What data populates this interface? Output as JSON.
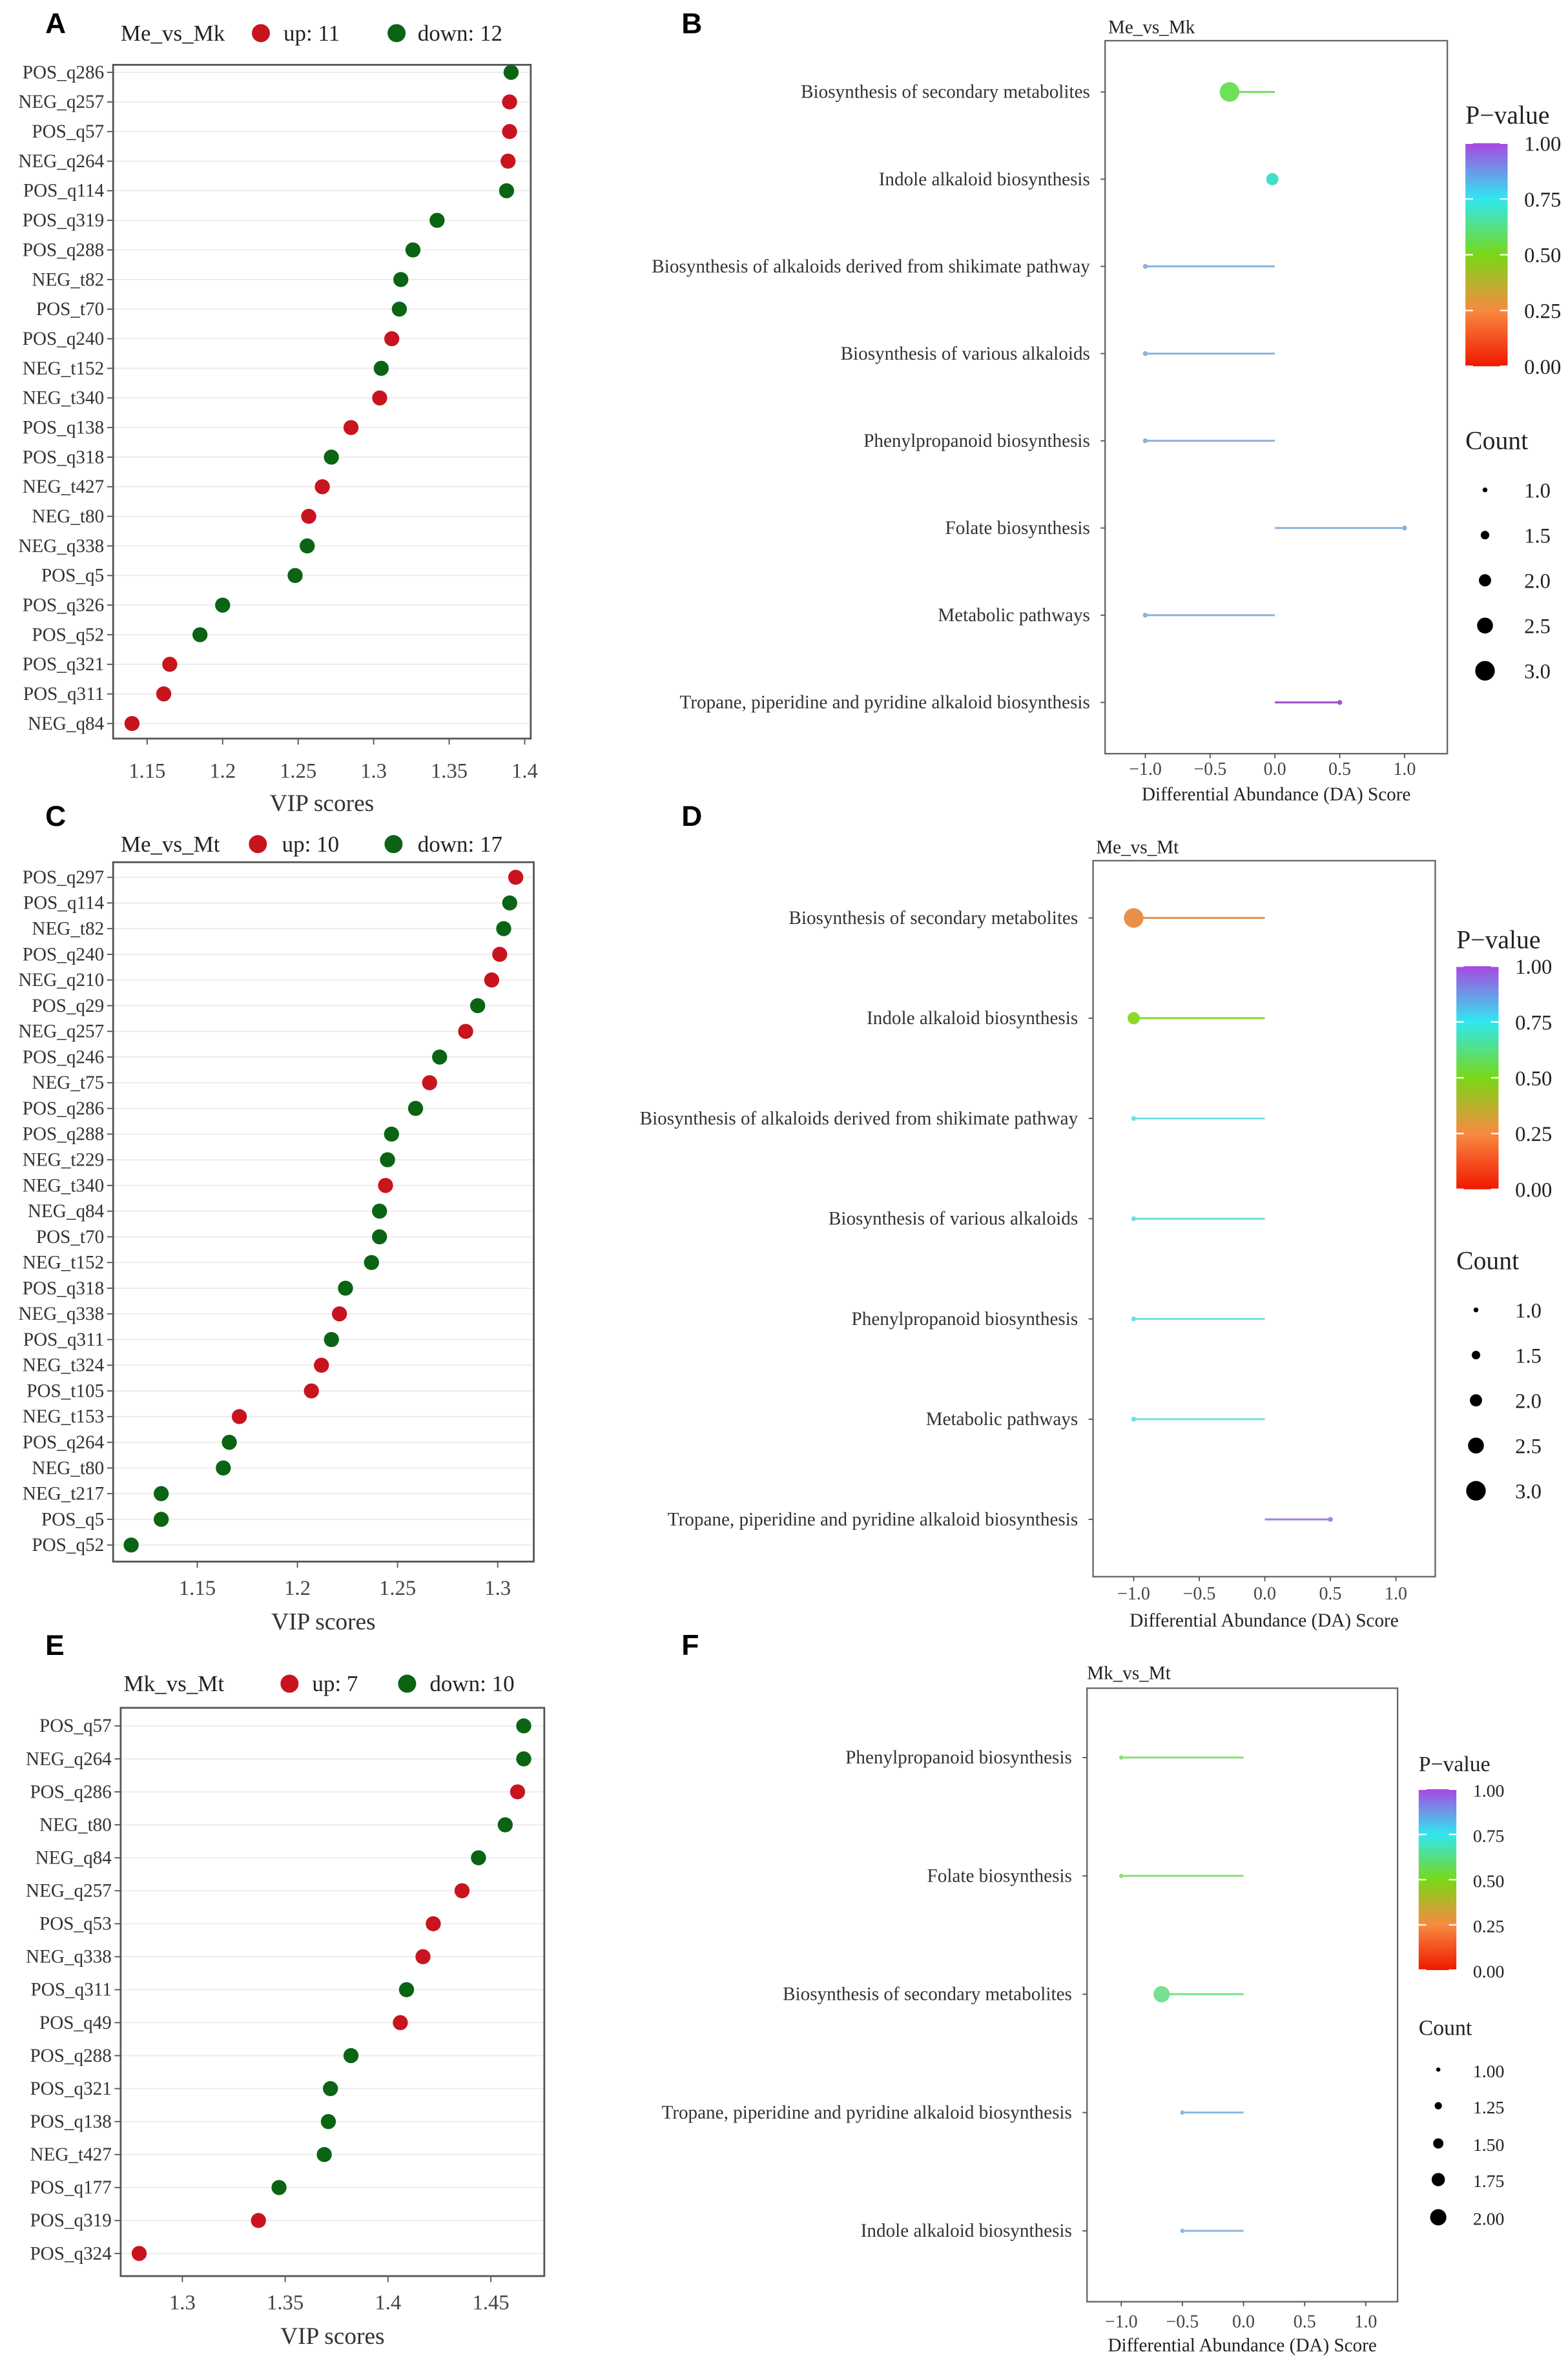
{
  "colors": {
    "up": "#c8141e",
    "down": "#0a6414",
    "grid": "#ebebeb",
    "axis": "#555555"
  },
  "chart_data": [
    {
      "panel": "A",
      "type": "scatter",
      "title": "Me_vs_Mk",
      "legend": {
        "up_label": "up: 11",
        "down_label": "down: 12"
      },
      "xlabel": "VIP scores",
      "xlim": [
        1.1275,
        1.404
      ],
      "xticks": [
        1.15,
        1.2,
        1.25,
        1.3,
        1.35,
        1.4
      ],
      "xtick_labels": [
        "1.15",
        "1.2",
        "1.25",
        "1.3",
        "1.35",
        "1.4"
      ],
      "points": [
        {
          "label": "POS_q286",
          "vip": 1.391,
          "direction": "down"
        },
        {
          "label": "NEG_q257",
          "vip": 1.39,
          "direction": "up"
        },
        {
          "label": "POS_q57",
          "vip": 1.39,
          "direction": "up"
        },
        {
          "label": "NEG_q264",
          "vip": 1.389,
          "direction": "up"
        },
        {
          "label": "POS_q114",
          "vip": 1.388,
          "direction": "down"
        },
        {
          "label": "POS_q319",
          "vip": 1.342,
          "direction": "down"
        },
        {
          "label": "POS_q288",
          "vip": 1.326,
          "direction": "down"
        },
        {
          "label": "NEG_t82",
          "vip": 1.318,
          "direction": "down"
        },
        {
          "label": "POS_t70",
          "vip": 1.317,
          "direction": "down"
        },
        {
          "label": "POS_q240",
          "vip": 1.312,
          "direction": "up"
        },
        {
          "label": "NEG_t152",
          "vip": 1.305,
          "direction": "down"
        },
        {
          "label": "NEG_t340",
          "vip": 1.304,
          "direction": "up"
        },
        {
          "label": "POS_q138",
          "vip": 1.285,
          "direction": "up"
        },
        {
          "label": "POS_q318",
          "vip": 1.272,
          "direction": "down"
        },
        {
          "label": "NEG_t427",
          "vip": 1.266,
          "direction": "up"
        },
        {
          "label": "NEG_t80",
          "vip": 1.257,
          "direction": "up"
        },
        {
          "label": "NEG_q338",
          "vip": 1.256,
          "direction": "down"
        },
        {
          "label": "POS_q5",
          "vip": 1.248,
          "direction": "down"
        },
        {
          "label": "POS_q326",
          "vip": 1.2,
          "direction": "down"
        },
        {
          "label": "POS_q52",
          "vip": 1.185,
          "direction": "down"
        },
        {
          "label": "POS_q321",
          "vip": 1.165,
          "direction": "up"
        },
        {
          "label": "POS_q311",
          "vip": 1.161,
          "direction": "up"
        },
        {
          "label": "NEG_q84",
          "vip": 1.14,
          "direction": "up"
        }
      ]
    },
    {
      "panel": "B",
      "type": "lollipop",
      "title": "Me_vs_Mk",
      "xlabel": "Differential Abundance (DA) Score",
      "xlim": [
        -1.31,
        1.33
      ],
      "xticks": [
        -1.0,
        -0.5,
        0.0,
        0.5,
        1.0
      ],
      "xtick_labels": [
        "−1.0",
        "−0.5",
        "0.0",
        "0.5",
        "1.0"
      ],
      "pvalue_legend": {
        "title": "P−value",
        "labels": [
          "1.00",
          "0.75",
          "0.50",
          "0.25",
          "0.00"
        ]
      },
      "count_legend": {
        "title": "Count",
        "values": [
          1.0,
          1.5,
          2.0,
          2.5,
          3.0
        ],
        "labels": [
          "1.0",
          "1.5",
          "2.0",
          "2.5",
          "3.0"
        ]
      },
      "points": [
        {
          "pathway": "Biosynthesis of secondary metabolites",
          "da": -0.35,
          "count": 3,
          "pvalue": 0.55,
          "color": "#6ee05a"
        },
        {
          "pathway": "Indole alkaloid biosynthesis",
          "da": -0.02,
          "count": 2,
          "pvalue": 0.72,
          "color": "#40e0c8"
        },
        {
          "pathway": "Biosynthesis of alkaloids derived from shikimate pathway",
          "da": -1.0,
          "count": 1,
          "pvalue": 0.88,
          "color": "#8ab4dc"
        },
        {
          "pathway": "Biosynthesis of various alkaloids",
          "da": -1.0,
          "count": 1,
          "pvalue": 0.88,
          "color": "#8ab4dc"
        },
        {
          "pathway": "Phenylpropanoid biosynthesis",
          "da": -1.0,
          "count": 1,
          "pvalue": 0.88,
          "color": "#8ab4dc"
        },
        {
          "pathway": "Folate biosynthesis",
          "da": 1.0,
          "count": 1,
          "pvalue": 0.88,
          "color": "#8ab4dc"
        },
        {
          "pathway": "Metabolic pathways",
          "da": -1.0,
          "count": 1,
          "pvalue": 0.88,
          "color": "#8ab4dc"
        },
        {
          "pathway": "Tropane, piperidine and pyridine alkaloid biosynthesis",
          "da": 0.5,
          "count": 1,
          "pvalue": 1.0,
          "color": "#a050d8"
        }
      ]
    },
    {
      "panel": "C",
      "type": "scatter",
      "title": "Me_vs_Mt",
      "legend": {
        "up_label": "up: 10",
        "down_label": "down: 17"
      },
      "xlabel": "VIP scores",
      "xlim": [
        1.108,
        1.318
      ],
      "xticks": [
        1.15,
        1.2,
        1.25,
        1.3
      ],
      "xtick_labels": [
        "1.15",
        "1.2",
        "1.25",
        "1.3"
      ],
      "points": [
        {
          "label": "POS_q297",
          "vip": 1.309,
          "direction": "up"
        },
        {
          "label": "POS_q114",
          "vip": 1.306,
          "direction": "down"
        },
        {
          "label": "NEG_t82",
          "vip": 1.303,
          "direction": "down"
        },
        {
          "label": "POS_q240",
          "vip": 1.301,
          "direction": "up"
        },
        {
          "label": "NEG_q210",
          "vip": 1.297,
          "direction": "up"
        },
        {
          "label": "POS_q29",
          "vip": 1.29,
          "direction": "down"
        },
        {
          "label": "NEG_q257",
          "vip": 1.284,
          "direction": "up"
        },
        {
          "label": "POS_q246",
          "vip": 1.271,
          "direction": "down"
        },
        {
          "label": "NEG_t75",
          "vip": 1.266,
          "direction": "up"
        },
        {
          "label": "POS_q286",
          "vip": 1.259,
          "direction": "down"
        },
        {
          "label": "POS_q288",
          "vip": 1.247,
          "direction": "down"
        },
        {
          "label": "NEG_t229",
          "vip": 1.245,
          "direction": "down"
        },
        {
          "label": "NEG_t340",
          "vip": 1.244,
          "direction": "up"
        },
        {
          "label": "NEG_q84",
          "vip": 1.241,
          "direction": "down"
        },
        {
          "label": "POS_t70",
          "vip": 1.241,
          "direction": "down"
        },
        {
          "label": "NEG_t152",
          "vip": 1.237,
          "direction": "down"
        },
        {
          "label": "POS_q318",
          "vip": 1.224,
          "direction": "down"
        },
        {
          "label": "NEG_q338",
          "vip": 1.221,
          "direction": "up"
        },
        {
          "label": "POS_q311",
          "vip": 1.217,
          "direction": "down"
        },
        {
          "label": "NEG_t324",
          "vip": 1.212,
          "direction": "up"
        },
        {
          "label": "POS_t105",
          "vip": 1.207,
          "direction": "up"
        },
        {
          "label": "NEG_t153",
          "vip": 1.171,
          "direction": "up"
        },
        {
          "label": "POS_q264",
          "vip": 1.166,
          "direction": "down"
        },
        {
          "label": "NEG_t80",
          "vip": 1.163,
          "direction": "down"
        },
        {
          "label": "NEG_t217",
          "vip": 1.132,
          "direction": "down"
        },
        {
          "label": "POS_q5",
          "vip": 1.132,
          "direction": "down"
        },
        {
          "label": "POS_q52",
          "vip": 1.117,
          "direction": "down"
        }
      ]
    },
    {
      "panel": "D",
      "type": "lollipop",
      "title": "Me_vs_Mt",
      "xlabel": "Differential Abundance (DA) Score",
      "xlim": [
        -1.31,
        1.3
      ],
      "xticks": [
        -1.0,
        -0.5,
        0.0,
        0.5,
        1.0
      ],
      "xtick_labels": [
        "−1.0",
        "−0.5",
        "0.0",
        "0.5",
        "1.0"
      ],
      "pvalue_legend": {
        "title": "P−value",
        "labels": [
          "1.00",
          "0.75",
          "0.50",
          "0.25",
          "0.00"
        ]
      },
      "count_legend": {
        "title": "Count",
        "values": [
          1.0,
          1.5,
          2.0,
          2.5,
          3.0
        ],
        "labels": [
          "1.0",
          "1.5",
          "2.0",
          "2.5",
          "3.0"
        ]
      },
      "points": [
        {
          "pathway": "Biosynthesis of secondary metabolites",
          "da": -1.0,
          "count": 3,
          "pvalue": 0.3,
          "color": "#e8904a"
        },
        {
          "pathway": "Indole alkaloid biosynthesis",
          "da": -1.0,
          "count": 2,
          "pvalue": 0.48,
          "color": "#8cd828"
        },
        {
          "pathway": "Biosynthesis of alkaloids derived from shikimate pathway",
          "da": -1.0,
          "count": 1,
          "pvalue": 0.76,
          "color": "#70e0e0"
        },
        {
          "pathway": "Biosynthesis of various alkaloids",
          "da": -1.0,
          "count": 1,
          "pvalue": 0.76,
          "color": "#70e0e0"
        },
        {
          "pathway": "Phenylpropanoid biosynthesis",
          "da": -1.0,
          "count": 1,
          "pvalue": 0.76,
          "color": "#70e0e0"
        },
        {
          "pathway": "Metabolic pathways",
          "da": -1.0,
          "count": 1,
          "pvalue": 0.76,
          "color": "#70e0e0"
        },
        {
          "pathway": "Tropane, piperidine and pyridine alkaloid biosynthesis",
          "da": 0.5,
          "count": 1,
          "pvalue": 1.0,
          "color": "#a880e0"
        }
      ]
    },
    {
      "panel": "E",
      "type": "scatter",
      "title": "Mk_vs_Mt",
      "legend": {
        "up_label": "up: 7",
        "down_label": "down: 10"
      },
      "xlabel": "VIP scores",
      "xlim": [
        1.27,
        1.476
      ],
      "xticks": [
        1.3,
        1.35,
        1.4,
        1.45
      ],
      "xtick_labels": [
        "1.3",
        "1.35",
        "1.4",
        "1.45"
      ],
      "points": [
        {
          "label": "POS_q57",
          "vip": 1.466,
          "direction": "down"
        },
        {
          "label": "NEG_q264",
          "vip": 1.466,
          "direction": "down"
        },
        {
          "label": "POS_q286",
          "vip": 1.463,
          "direction": "up"
        },
        {
          "label": "NEG_t80",
          "vip": 1.457,
          "direction": "down"
        },
        {
          "label": "NEG_q84",
          "vip": 1.444,
          "direction": "down"
        },
        {
          "label": "NEG_q257",
          "vip": 1.436,
          "direction": "up"
        },
        {
          "label": "POS_q53",
          "vip": 1.422,
          "direction": "up"
        },
        {
          "label": "NEG_q338",
          "vip": 1.417,
          "direction": "up"
        },
        {
          "label": "POS_q311",
          "vip": 1.409,
          "direction": "down"
        },
        {
          "label": "POS_q49",
          "vip": 1.406,
          "direction": "up"
        },
        {
          "label": "POS_q288",
          "vip": 1.382,
          "direction": "down"
        },
        {
          "label": "POS_q321",
          "vip": 1.372,
          "direction": "down"
        },
        {
          "label": "POS_q138",
          "vip": 1.371,
          "direction": "down"
        },
        {
          "label": "NEG_t427",
          "vip": 1.369,
          "direction": "down"
        },
        {
          "label": "POS_q177",
          "vip": 1.347,
          "direction": "down"
        },
        {
          "label": "POS_q319",
          "vip": 1.337,
          "direction": "up"
        },
        {
          "label": "POS_q324",
          "vip": 1.279,
          "direction": "up"
        }
      ]
    },
    {
      "panel": "F",
      "type": "lollipop",
      "title": "Mk_vs_Mt",
      "xlabel": "Differential Abundance (DA) Score",
      "xlim": [
        -1.28,
        1.26
      ],
      "xticks": [
        -1.0,
        -0.5,
        0.0,
        0.5,
        1.0
      ],
      "xtick_labels": [
        "−1.0",
        "−0.5",
        "0.0",
        "0.5",
        "1.0"
      ],
      "pvalue_legend": {
        "title": "P−value",
        "labels": [
          "1.00",
          "0.75",
          "0.50",
          "0.25",
          "0.00"
        ]
      },
      "count_legend": {
        "title": "Count",
        "values": [
          1.0,
          1.25,
          1.5,
          1.75,
          2.0
        ],
        "labels": [
          "1.00",
          "1.25",
          "1.50",
          "1.75",
          "2.00"
        ]
      },
      "points": [
        {
          "pathway": "Phenylpropanoid biosynthesis",
          "da": -1.0,
          "count": 1,
          "pvalue": 0.56,
          "color": "#88dc78"
        },
        {
          "pathway": "Folate biosynthesis",
          "da": -1.0,
          "count": 1,
          "pvalue": 0.56,
          "color": "#88dc78"
        },
        {
          "pathway": "Biosynthesis of secondary metabolites",
          "da": -0.67,
          "count": 2,
          "pvalue": 0.6,
          "color": "#78e090"
        },
        {
          "pathway": "Tropane, piperidine and pyridine alkaloid biosynthesis",
          "da": -0.5,
          "count": 1,
          "pvalue": 0.85,
          "color": "#8ab8e0"
        },
        {
          "pathway": "Indole alkaloid biosynthesis",
          "da": -0.5,
          "count": 1,
          "pvalue": 0.85,
          "color": "#8ab8e0"
        }
      ]
    }
  ]
}
